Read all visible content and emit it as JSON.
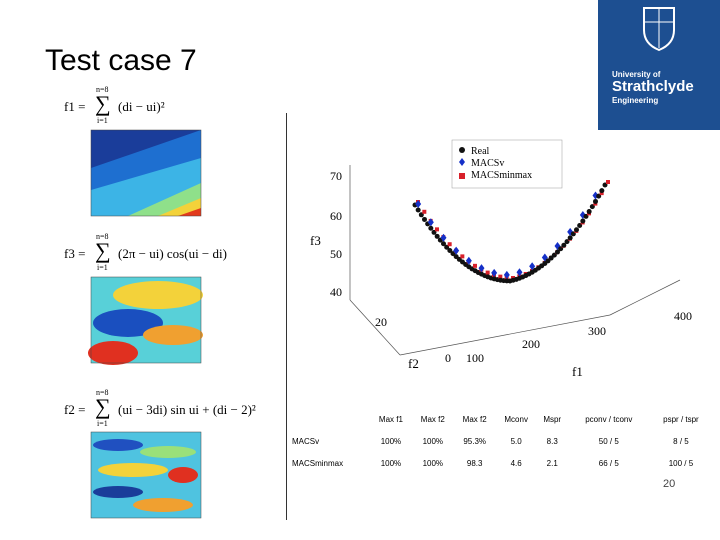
{
  "header": {
    "title": "Test case 7"
  },
  "logo": {
    "line1": "University of",
    "line2": "Strathclyde",
    "line3": "Engineering"
  },
  "formulas": [
    {
      "lhs": "f1 =",
      "upper": "n=8",
      "lower": "i=1",
      "body": "(di − ui)²"
    },
    {
      "lhs": "f3 =",
      "upper": "n=8",
      "lower": "i=1",
      "body": "(2π − ui) cos(ui − di)"
    },
    {
      "lhs": "f2 =",
      "upper": "n=8",
      "lower": "i=1",
      "body": "(ui − 3di) sin ui + (di − 2)²"
    }
  ],
  "plot": {
    "legend": [
      "Real",
      "MACSv",
      "MACSminmax"
    ],
    "z_label": "f3",
    "z_ticks": [
      "70",
      "60",
      "50",
      "40"
    ],
    "y_label": "f2",
    "y_ticks": [
      "20",
      "0"
    ],
    "x_label": "f1",
    "x_ticks": [
      "100",
      "200",
      "300",
      "400"
    ]
  },
  "table": {
    "header": [
      "",
      "Max f1",
      "Max f2",
      "Max f2",
      "Mconv",
      "Mspr",
      "pconv / tconv",
      "pspr / tspr"
    ],
    "rows": [
      [
        "MACSv",
        "100%",
        "100%",
        "95.3%",
        "5.0",
        "8.3",
        "50 / 5",
        "8 / 5"
      ],
      [
        "MACSminmax",
        "100%",
        "100%",
        "98.3",
        "4.6",
        "2.1",
        "66 / 5",
        "100 / 5"
      ]
    ]
  },
  "page_number": "20"
}
